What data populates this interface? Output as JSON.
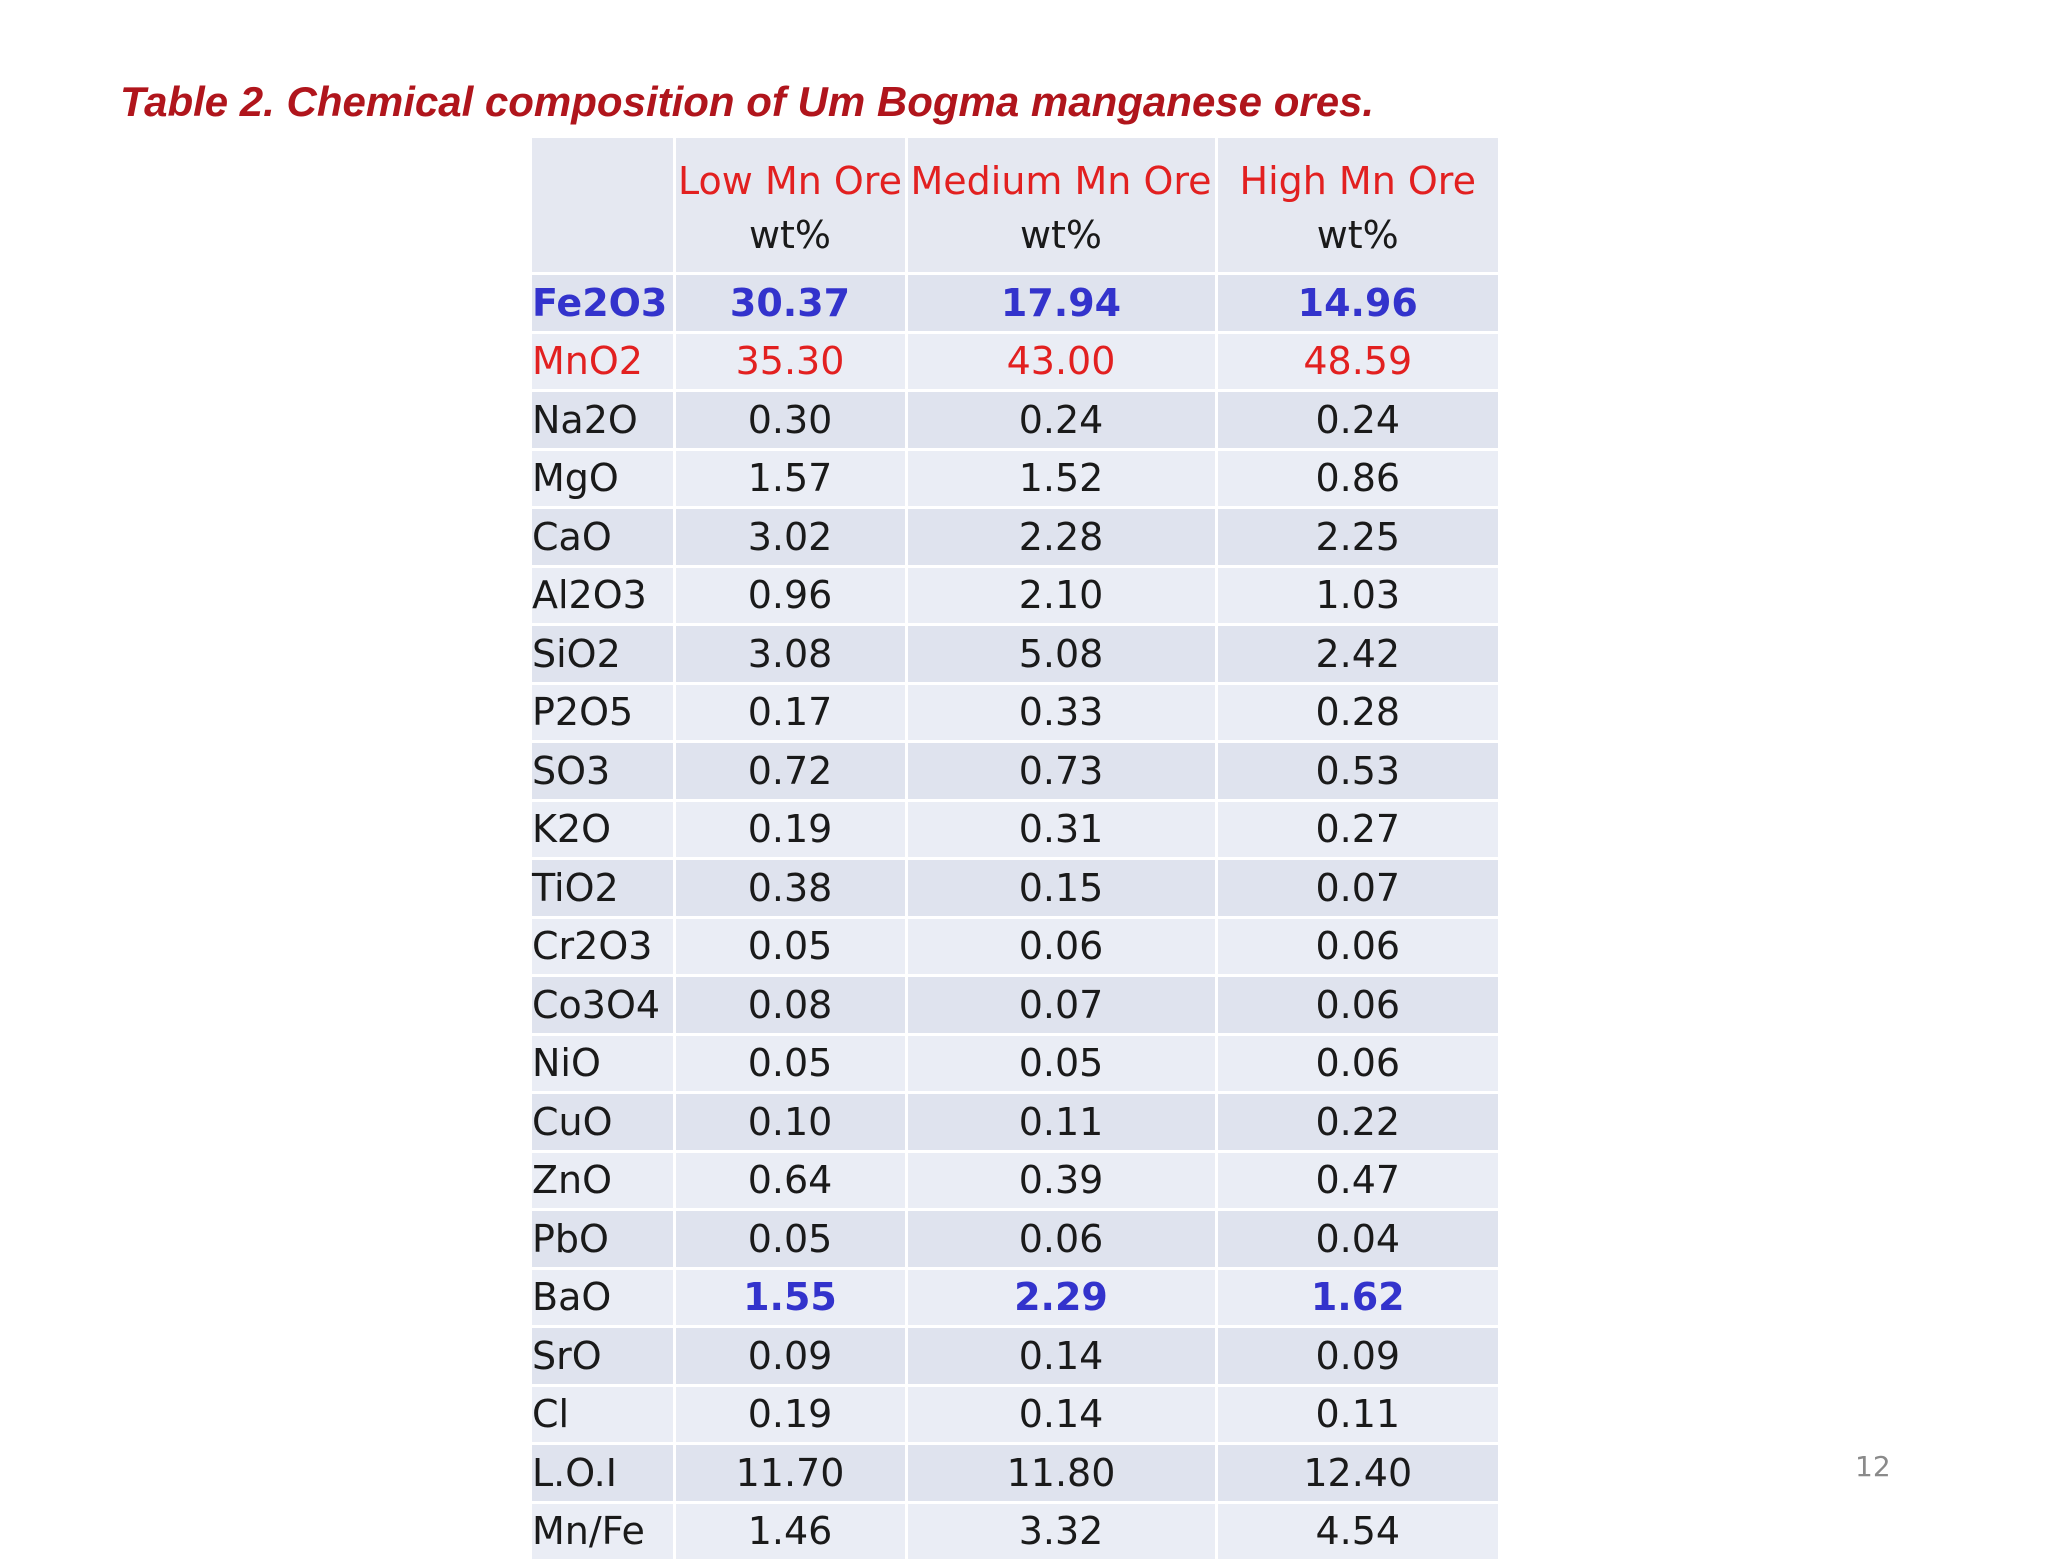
{
  "title": "Table 2. Chemical composition of Um Bogma manganese ores.",
  "page_number": "12",
  "colors": {
    "title": "#b0151c",
    "header_label": "#e22020",
    "highlight_blue": "#3333cc",
    "highlight_red": "#e22020"
  },
  "table": {
    "headers": [
      {
        "label": "",
        "unit": ""
      },
      {
        "label": "Low Mn Ore",
        "unit": "wt%"
      },
      {
        "label": "Medium Mn Ore",
        "unit": "wt%"
      },
      {
        "label": "High Mn Ore",
        "unit": "wt%"
      }
    ],
    "rows": [
      {
        "name": "Fe2O3",
        "values": [
          "30.37",
          "17.94",
          "14.96"
        ]
      },
      {
        "name": "MnO2",
        "values": [
          "35.30",
          "43.00",
          "48.59"
        ]
      },
      {
        "name": "Na2O",
        "values": [
          "0.30",
          "0.24",
          "0.24"
        ]
      },
      {
        "name": "MgO",
        "values": [
          "1.57",
          "1.52",
          "0.86"
        ]
      },
      {
        "name": "CaO",
        "values": [
          "3.02",
          "2.28",
          "2.25"
        ]
      },
      {
        "name": "Al2O3",
        "values": [
          "0.96",
          "2.10",
          "1.03"
        ]
      },
      {
        "name": "SiO2",
        "values": [
          "3.08",
          "5.08",
          "2.42"
        ]
      },
      {
        "name": "P2O5",
        "values": [
          "0.17",
          "0.33",
          "0.28"
        ]
      },
      {
        "name": "SO3",
        "values": [
          "0.72",
          "0.73",
          "0.53"
        ]
      },
      {
        "name": "K2O",
        "values": [
          "0.19",
          "0.31",
          "0.27"
        ]
      },
      {
        "name": "TiO2",
        "values": [
          "0.38",
          "0.15",
          "0.07"
        ]
      },
      {
        "name": "Cr2O3",
        "values": [
          "0.05",
          "0.06",
          "0.06"
        ]
      },
      {
        "name": "Co3O4",
        "values": [
          "0.08",
          "0.07",
          "0.06"
        ]
      },
      {
        "name": "NiO",
        "values": [
          "0.05",
          "0.05",
          "0.06"
        ]
      },
      {
        "name": "CuO",
        "values": [
          "0.10",
          "0.11",
          "0.22"
        ]
      },
      {
        "name": "ZnO",
        "values": [
          "0.64",
          "0.39",
          "0.47"
        ]
      },
      {
        "name": "PbO",
        "values": [
          "0.05",
          "0.06",
          "0.04"
        ]
      },
      {
        "name": "BaO",
        "values": [
          "1.55",
          "2.29",
          "1.62"
        ]
      },
      {
        "name": "SrO",
        "values": [
          "0.09",
          "0.14",
          "0.09"
        ]
      },
      {
        "name": "Cl",
        "values": [
          "0.19",
          "0.14",
          "0.11"
        ]
      },
      {
        "name": "L.O.I",
        "values": [
          "11.70",
          "11.80",
          "12.40"
        ]
      },
      {
        "name": "Mn/Fe",
        "values": [
          "1.46",
          "3.32",
          "4.54"
        ]
      }
    ]
  }
}
